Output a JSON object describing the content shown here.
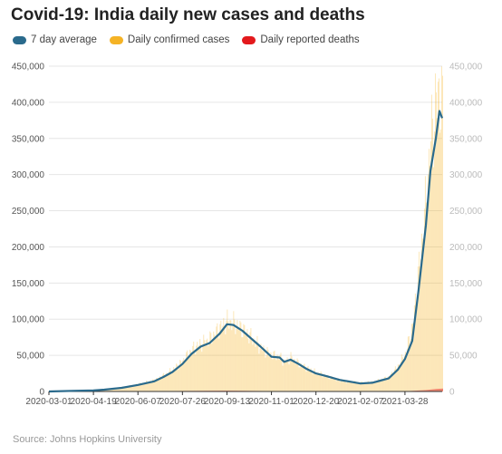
{
  "header": {
    "title": "Covid-19: India daily new cases and deaths"
  },
  "legend": [
    {
      "label": "7 day average",
      "color": "#2a6a8c"
    },
    {
      "label": "Daily confirmed cases",
      "color": "#f5b325"
    },
    {
      "label": "Daily reported deaths",
      "color": "#e3191c"
    }
  ],
  "footer": {
    "source": "Source: Johns Hopkins University"
  },
  "chart_data": {
    "type": "bar",
    "x_ticks": [
      "2020-03-01",
      "2020-04-19",
      "2020-06-07",
      "2020-07-26",
      "2020-09-13",
      "2020-11-01",
      "2020-12-20",
      "2021-02-07",
      "2021-03-28"
    ],
    "y_ticks": [
      "0",
      "50,000",
      "100,000",
      "150,000",
      "200,000",
      "250,000",
      "300,000",
      "350,000",
      "400,000",
      "450,000"
    ],
    "ylim": [
      0,
      450000
    ],
    "x_range": [
      "2020-03-01",
      "2021-05-08"
    ],
    "grid": true,
    "legend_position": "top-left",
    "series": [
      {
        "name": "7 day average",
        "type": "line",
        "color": "#2a6a8c",
        "x": [
          "2020-03-01",
          "2020-04-01",
          "2020-04-19",
          "2020-05-01",
          "2020-05-20",
          "2020-06-07",
          "2020-06-25",
          "2020-07-05",
          "2020-07-15",
          "2020-07-26",
          "2020-08-05",
          "2020-08-15",
          "2020-08-25",
          "2020-09-05",
          "2020-09-13",
          "2020-09-20",
          "2020-09-30",
          "2020-10-10",
          "2020-10-20",
          "2020-11-01",
          "2020-11-10",
          "2020-11-15",
          "2020-11-22",
          "2020-12-01",
          "2020-12-10",
          "2020-12-20",
          "2021-01-01",
          "2021-01-15",
          "2021-02-07",
          "2021-02-20",
          "2021-03-01",
          "2021-03-10",
          "2021-03-20",
          "2021-03-28",
          "2021-04-05",
          "2021-04-12",
          "2021-04-20",
          "2021-04-25",
          "2021-05-01",
          "2021-05-05",
          "2021-05-08"
        ],
        "values": [
          0,
          1000,
          1500,
          2500,
          5000,
          9000,
          14000,
          20000,
          27000,
          38000,
          52000,
          62000,
          67000,
          80000,
          93000,
          92000,
          84000,
          73000,
          62000,
          48000,
          47000,
          41000,
          44000,
          38000,
          31000,
          25000,
          21000,
          16000,
          11000,
          12000,
          15000,
          18000,
          30000,
          45000,
          70000,
          140000,
          230000,
          305000,
          350000,
          388000,
          378000
        ]
      },
      {
        "name": "Daily confirmed cases",
        "type": "bar",
        "color": "#f5b325",
        "x": [
          "2020-03-01",
          "2020-04-01",
          "2020-04-19",
          "2020-05-01",
          "2020-05-20",
          "2020-06-07",
          "2020-06-25",
          "2020-07-05",
          "2020-07-15",
          "2020-07-26",
          "2020-08-05",
          "2020-08-15",
          "2020-08-25",
          "2020-09-05",
          "2020-09-13",
          "2020-09-20",
          "2020-09-30",
          "2020-10-10",
          "2020-10-20",
          "2020-11-01",
          "2020-11-10",
          "2020-11-15",
          "2020-11-22",
          "2020-12-01",
          "2020-12-10",
          "2020-12-20",
          "2021-01-01",
          "2021-01-15",
          "2021-02-07",
          "2021-02-20",
          "2021-03-01",
          "2021-03-10",
          "2021-03-20",
          "2021-03-28",
          "2021-04-05",
          "2021-04-12",
          "2021-04-20",
          "2021-04-25",
          "2021-05-01",
          "2021-05-05",
          "2021-05-08"
        ],
        "values": [
          0,
          1200,
          1600,
          2800,
          5500,
          10000,
          15500,
          22000,
          30000,
          42000,
          58000,
          66000,
          72000,
          88000,
          97000,
          95000,
          86000,
          74000,
          60000,
          50000,
          48000,
          40000,
          47000,
          38000,
          32000,
          26000,
          21000,
          15000,
          12000,
          13000,
          16000,
          20000,
          35000,
          52000,
          90000,
          170000,
          265000,
          350000,
          400000,
          412000,
          390000
        ]
      },
      {
        "name": "Daily reported deaths",
        "type": "bar",
        "color": "#e3191c",
        "x": [
          "2020-03-01",
          "2020-06-07",
          "2020-07-26",
          "2020-09-13",
          "2020-11-01",
          "2020-12-20",
          "2021-02-07",
          "2021-03-28",
          "2021-04-20",
          "2021-05-01",
          "2021-05-08"
        ],
        "values": [
          0,
          300,
          700,
          1100,
          500,
          300,
          100,
          300,
          2000,
          3500,
          4000
        ]
      }
    ]
  }
}
